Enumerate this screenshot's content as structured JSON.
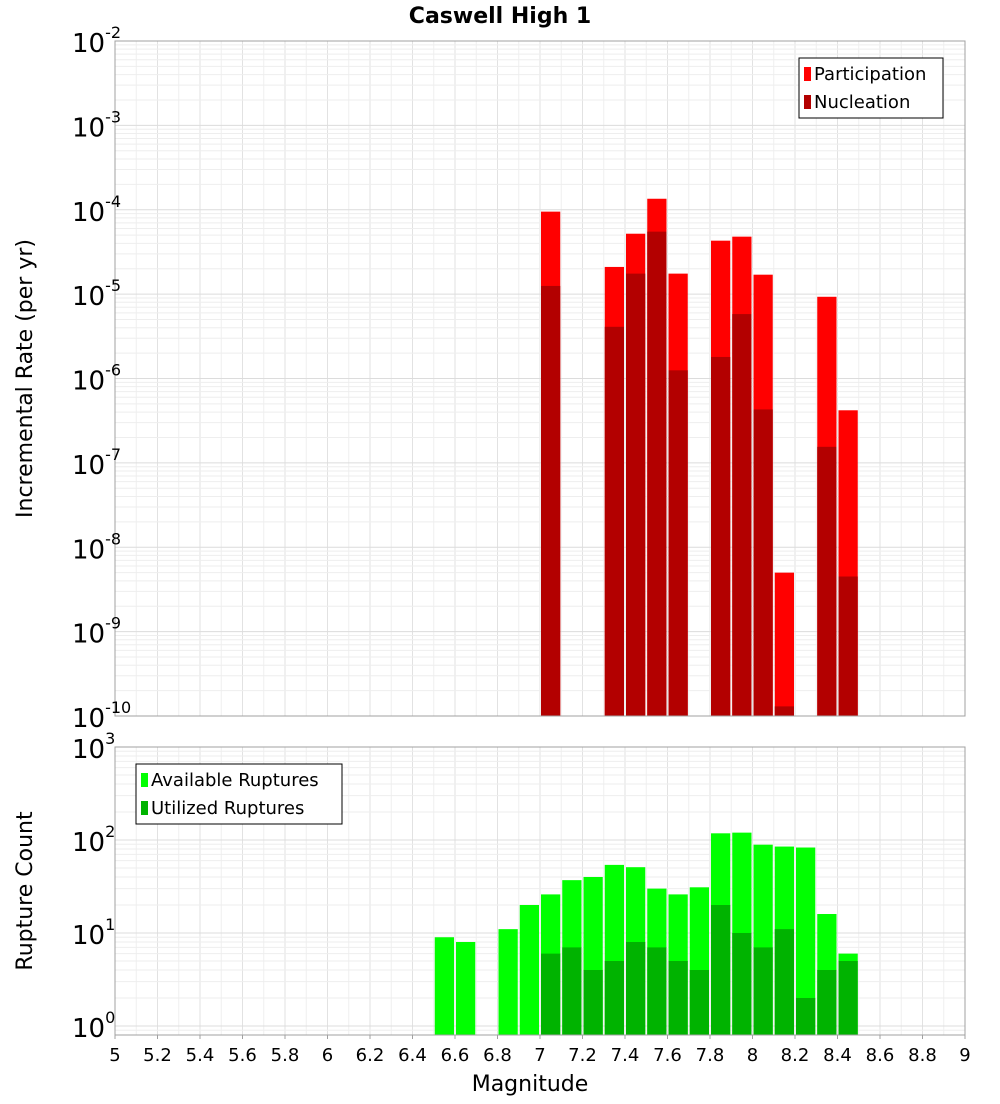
{
  "chart_data": [
    {
      "type": "bar",
      "title": "Caswell High 1",
      "xlabel": "",
      "ylabel": "Incremental Rate (per yr)",
      "y_scale": "log",
      "ylim": [
        1e-10,
        0.01
      ],
      "xlim": [
        5,
        9
      ],
      "grid": true,
      "legend_position": "top-right",
      "y_tick_labels": [
        {
          "value": 1e-10,
          "base": "10",
          "exp": "-10"
        },
        {
          "value": 1e-09,
          "base": "10",
          "exp": "-9"
        },
        {
          "value": 1e-08,
          "base": "10",
          "exp": "-8"
        },
        {
          "value": 1e-07,
          "base": "10",
          "exp": "-7"
        },
        {
          "value": 1e-06,
          "base": "10",
          "exp": "-6"
        },
        {
          "value": 1e-05,
          "base": "10",
          "exp": "-5"
        },
        {
          "value": 0.0001,
          "base": "10",
          "exp": "-4"
        },
        {
          "value": 0.001,
          "base": "10",
          "exp": "-3"
        },
        {
          "value": 0.01,
          "base": "10",
          "exp": "-2"
        }
      ],
      "series": [
        {
          "name": "Participation",
          "color": "#ff0000",
          "x": [
            7.05,
            7.35,
            7.45,
            7.55,
            7.65,
            7.85,
            7.95,
            8.05,
            8.15,
            8.35,
            8.45
          ],
          "values": [
            9.5e-05,
            2.1e-05,
            5.2e-05,
            0.000135,
            1.75e-05,
            4.3e-05,
            4.8e-05,
            1.7e-05,
            5e-09,
            9.3e-06,
            4.2e-07
          ]
        },
        {
          "name": "Nucleation",
          "color": "#b30000",
          "x": [
            7.05,
            7.35,
            7.45,
            7.55,
            7.65,
            7.85,
            7.95,
            8.05,
            8.15,
            8.35,
            8.45
          ],
          "values": [
            1.25e-05,
            4.1e-06,
            1.75e-05,
            5.5e-05,
            1.25e-06,
            1.8e-06,
            5.8e-06,
            4.3e-07,
            1.3e-10,
            1.55e-07,
            4.5e-09
          ]
        }
      ]
    },
    {
      "type": "bar",
      "title": "",
      "xlabel": "Magnitude",
      "ylabel": "Rupture Count",
      "y_scale": "log",
      "ylim": [
        0.8,
        1000
      ],
      "xlim": [
        5,
        9
      ],
      "grid": true,
      "legend_position": "top-left",
      "x_ticks": [
        "5",
        "5.2",
        "5.4",
        "5.6",
        "5.8",
        "6",
        "6.2",
        "6.4",
        "6.6",
        "6.8",
        "7",
        "7.2",
        "7.4",
        "7.6",
        "7.8",
        "8",
        "8.2",
        "8.4",
        "8.6",
        "8.8",
        "9"
      ],
      "y_tick_labels": [
        {
          "value": 1,
          "base": "10",
          "exp": "0"
        },
        {
          "value": 10,
          "base": "10",
          "exp": "1"
        },
        {
          "value": 100,
          "base": "10",
          "exp": "2"
        },
        {
          "value": 1000,
          "base": "10",
          "exp": "3"
        }
      ],
      "series": [
        {
          "name": "Available Ruptures",
          "color": "#00ff00",
          "x": [
            6.55,
            6.65,
            6.85,
            6.95,
            7.05,
            7.15,
            7.25,
            7.35,
            7.45,
            7.55,
            7.65,
            7.75,
            7.85,
            7.95,
            8.05,
            8.15,
            8.25,
            8.35,
            8.45
          ],
          "values": [
            9,
            8,
            11,
            20,
            26,
            37,
            40,
            54,
            51,
            30,
            26,
            31,
            118,
            120,
            89,
            85,
            83,
            16,
            6
          ]
        },
        {
          "name": "Utilized Ruptures",
          "color": "#00b300",
          "x": [
            7.05,
            7.15,
            7.25,
            7.35,
            7.45,
            7.55,
            7.65,
            7.75,
            7.85,
            7.95,
            8.05,
            8.15,
            8.25,
            8.35,
            8.45
          ],
          "values": [
            6,
            7,
            4,
            5,
            8,
            7,
            5,
            4,
            20,
            10,
            7,
            11,
            2,
            4,
            5
          ]
        }
      ]
    }
  ]
}
